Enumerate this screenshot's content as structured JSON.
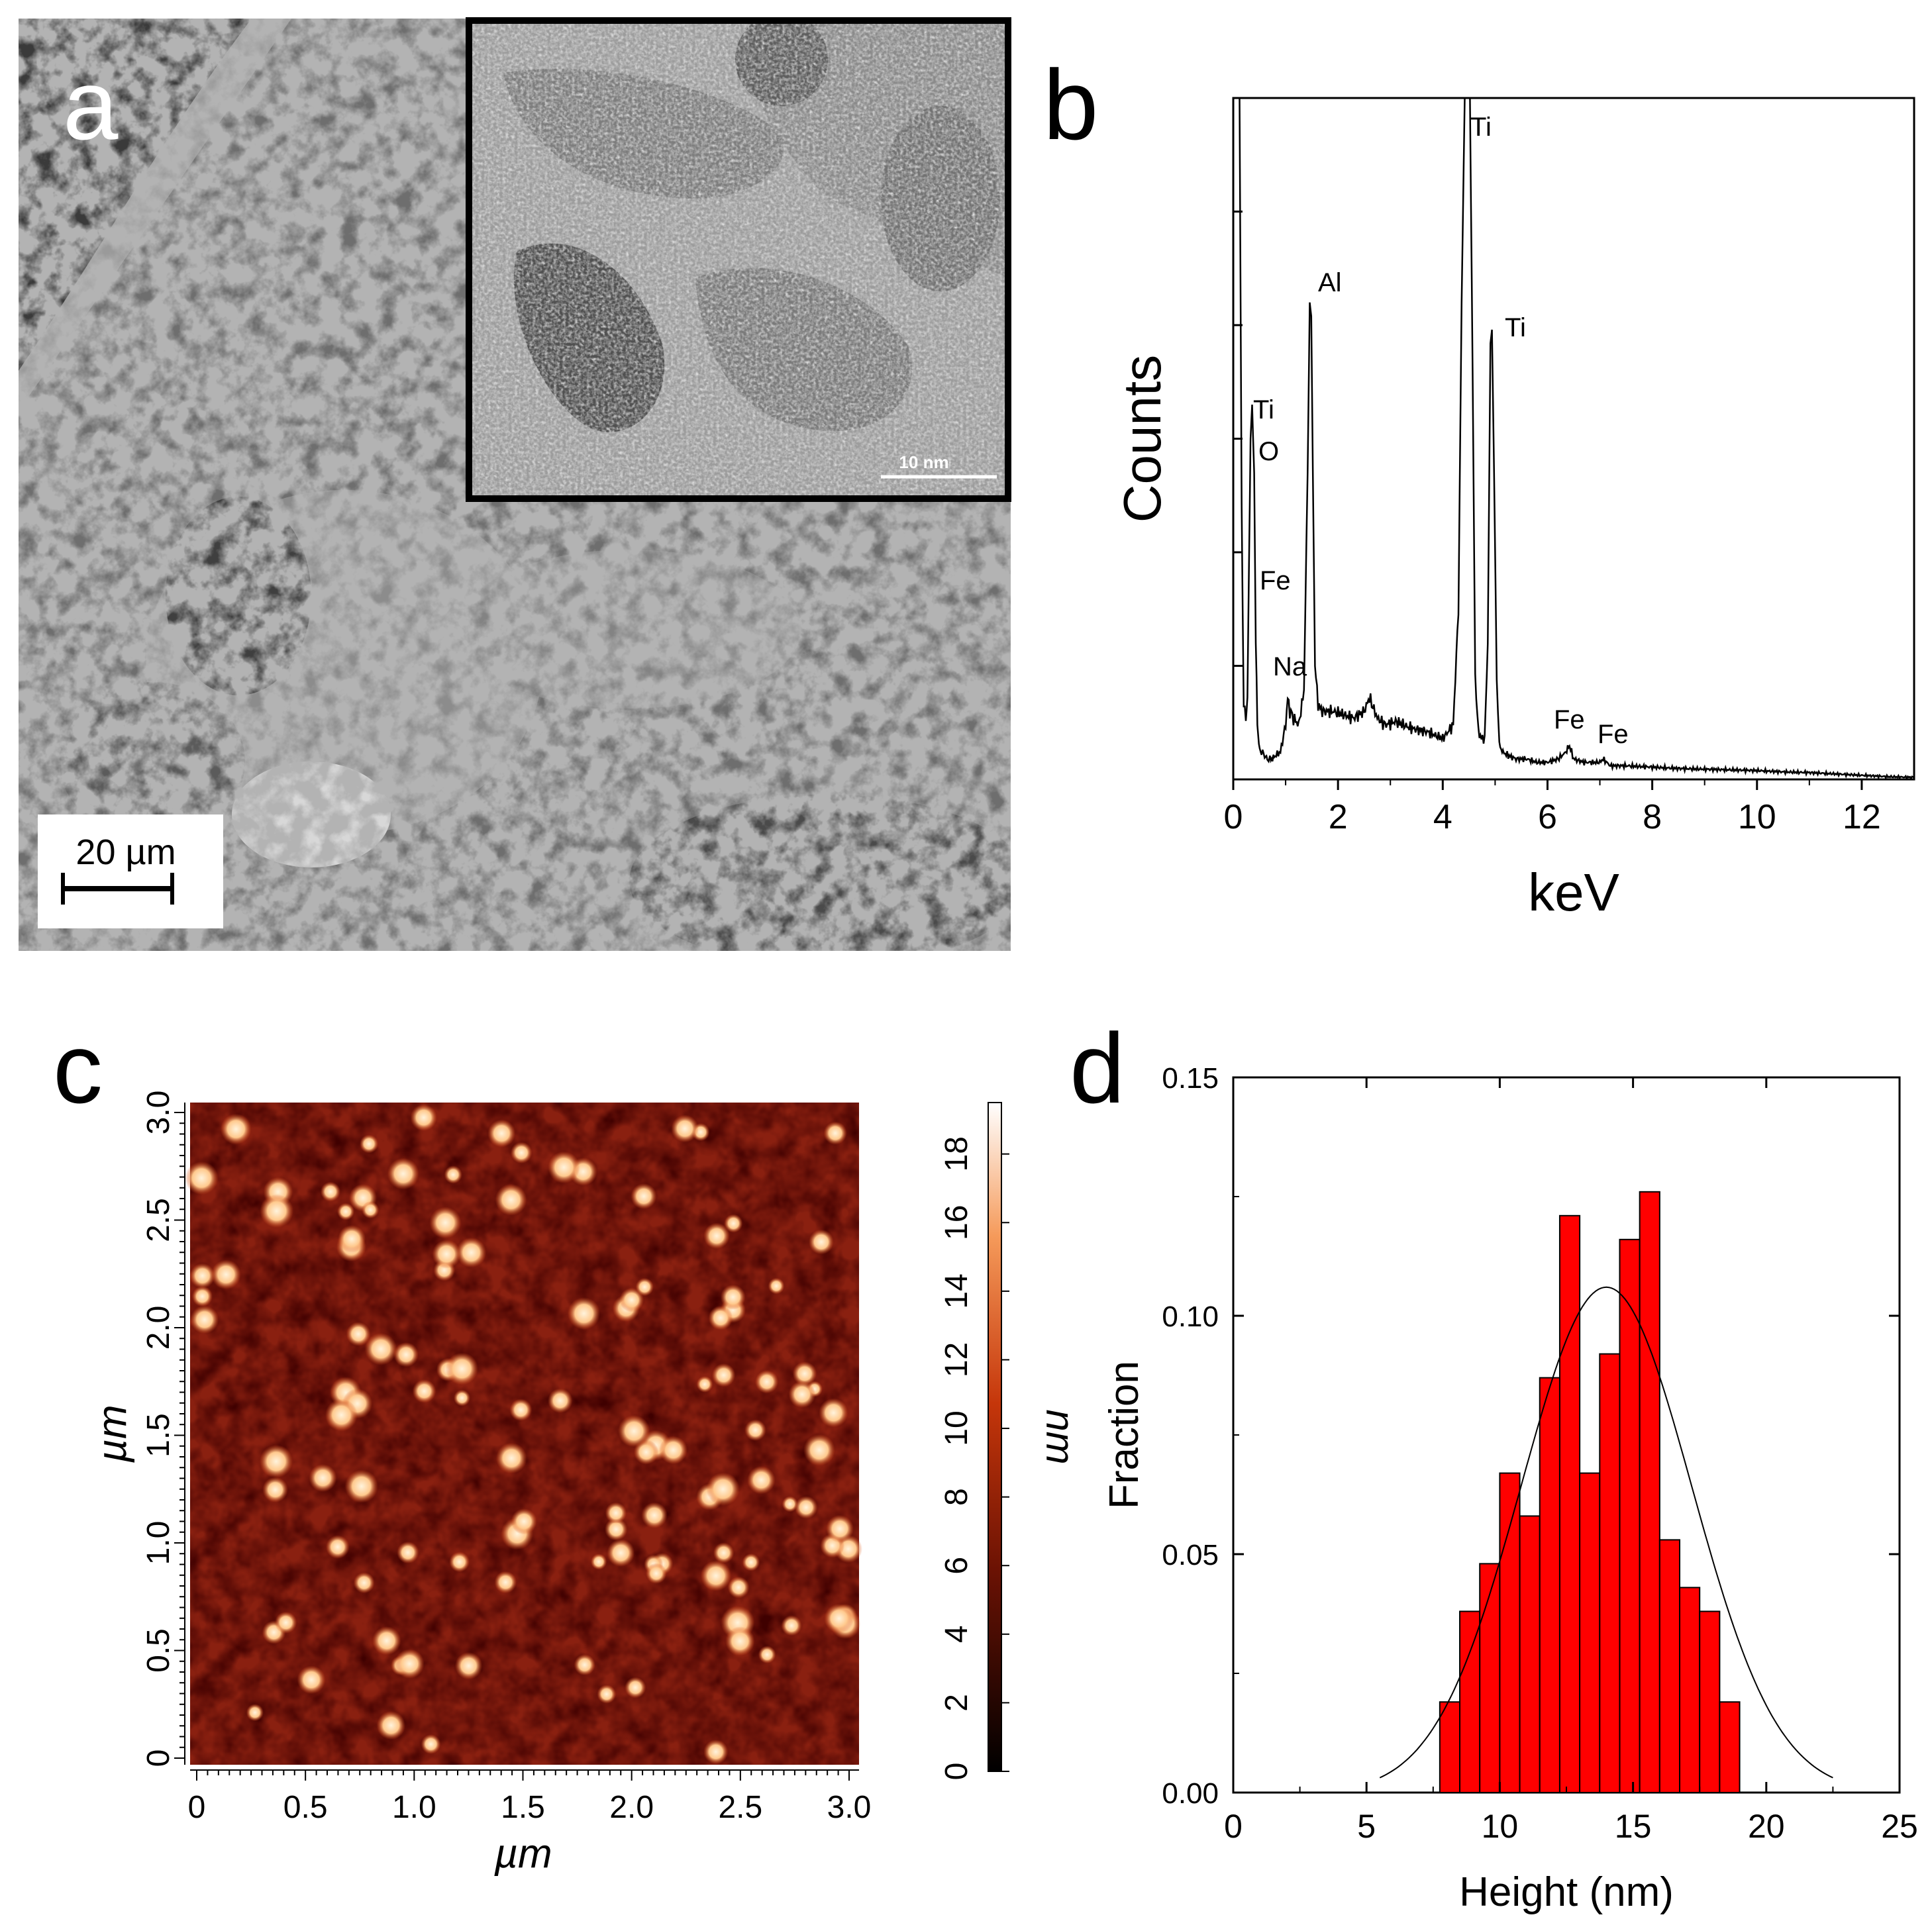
{
  "panel_a": {
    "letter": "a",
    "scalebar_label": "20 µm",
    "inset_scalebar_label": "10 nm"
  },
  "panel_b": {
    "letter": "b",
    "chart_data": {
      "type": "line",
      "xlabel": "keV",
      "ylabel": "Counts",
      "xlim": [
        0,
        13
      ],
      "ylim": [
        0,
        100
      ],
      "xticks": [
        "0",
        "2",
        "4",
        "6",
        "8",
        "10",
        "12"
      ],
      "y_tick_labels_shown": false,
      "grid": false,
      "peaks": [
        {
          "label": "Ti",
          "x": 0.45
        },
        {
          "label": "O",
          "x": 0.52
        },
        {
          "label": "Fe",
          "x": 0.7
        },
        {
          "label": "Na",
          "x": 1.04
        },
        {
          "label": "Al",
          "x": 1.49
        },
        {
          "label": "Ti",
          "x": 4.51
        },
        {
          "label": "Ti",
          "x": 4.93
        },
        {
          "label": "Fe",
          "x": 6.4
        },
        {
          "label": "Fe",
          "x": 7.06
        }
      ],
      "spectrum": {
        "x": [
          0.08,
          0.12,
          0.16,
          0.2,
          0.24,
          0.27,
          0.3,
          0.33,
          0.36,
          0.4,
          0.43,
          0.46,
          0.49,
          0.52,
          0.56,
          0.6,
          0.65,
          0.7,
          0.75,
          0.8,
          0.9,
          1.0,
          1.04,
          1.08,
          1.15,
          1.25,
          1.35,
          1.42,
          1.46,
          1.49,
          1.52,
          1.56,
          1.62,
          1.7,
          1.9,
          2.1,
          2.3,
          2.5,
          2.6,
          2.75,
          2.9,
          3.1,
          3.4,
          3.7,
          4.0,
          4.2,
          4.3,
          4.36,
          4.42,
          4.47,
          4.52,
          4.57,
          4.62,
          4.68,
          4.74,
          4.8,
          4.86,
          4.91,
          4.94,
          4.98,
          5.03,
          5.08,
          5.15,
          5.25,
          5.4,
          5.6,
          5.8,
          6.0,
          6.2,
          6.35,
          6.42,
          6.5,
          6.7,
          7.0,
          7.06,
          7.2,
          7.5,
          8.0,
          8.5,
          9.0,
          9.5,
          10.0,
          10.5,
          11.0,
          11.5,
          12.0,
          12.5,
          13.0
        ],
        "y": [
          100,
          100,
          40,
          11,
          9,
          12,
          30,
          50,
          55,
          45,
          20,
          9,
          5,
          4,
          4,
          3.5,
          3,
          3,
          3,
          3.5,
          4,
          8,
          12,
          10,
          9,
          8,
          13,
          45,
          70,
          68,
          45,
          17,
          11,
          10,
          10,
          9.5,
          9,
          10,
          12,
          9,
          8,
          8.5,
          7.5,
          7,
          6,
          8,
          25,
          70,
          100,
          100,
          100,
          60,
          15,
          7,
          6,
          6,
          20,
          64,
          66,
          45,
          15,
          5,
          4,
          3.5,
          3,
          3,
          2.5,
          2.5,
          3,
          4,
          5,
          3,
          2.5,
          2.5,
          3,
          2,
          2,
          1.8,
          1.6,
          1.5,
          1.4,
          1.3,
          1.1,
          1.0,
          0.8,
          0.6,
          0.4,
          0.3
        ]
      }
    }
  },
  "panel_c": {
    "letter": "c",
    "xlabel": "µm",
    "ylabel": "µm",
    "colorbar_label": "nm",
    "xticks": [
      "0",
      "0.5",
      "1.0",
      "1.5",
      "2.0",
      "2.5",
      "3.0"
    ],
    "yticks": [
      "0",
      "0.5",
      "1.0",
      "1.5",
      "2.0",
      "2.5",
      "3.0"
    ],
    "colorbar_ticks": [
      "0",
      "2",
      "4",
      "6",
      "8",
      "10",
      "12",
      "14",
      "16",
      "18"
    ],
    "colorbar_max": 19.5,
    "colors": {
      "background": "#7a1a08",
      "dot": "#ffd9a8",
      "dot_edge": "#e0541a"
    }
  },
  "panel_d": {
    "letter": "d",
    "chart_data": {
      "type": "bar",
      "xlabel": "Height (nm)",
      "ylabel": "Fraction",
      "xlim": [
        0,
        25
      ],
      "ylim": [
        0,
        0.15
      ],
      "xticks": [
        "0",
        "5",
        "10",
        "15",
        "20",
        "25"
      ],
      "yticks": [
        "0.00",
        "0.05",
        "0.10",
        "0.15"
      ],
      "bin_width": 0.75,
      "bins_start": [
        7.75,
        8.5,
        9.25,
        10.0,
        10.75,
        11.5,
        12.25,
        13.0,
        13.75,
        14.5,
        15.25,
        16.0,
        16.75,
        17.5,
        18.25
      ],
      "values": [
        0.019,
        0.038,
        0.048,
        0.067,
        0.058,
        0.087,
        0.121,
        0.067,
        0.092,
        0.116,
        0.126,
        0.053,
        0.043,
        0.038,
        0.019
      ],
      "bar_color": "#ff0000",
      "fit": {
        "type": "gaussian",
        "mean": 14.0,
        "sigma": 3.2,
        "peak": 0.106,
        "x_range": [
          5.5,
          22.5
        ]
      }
    }
  }
}
